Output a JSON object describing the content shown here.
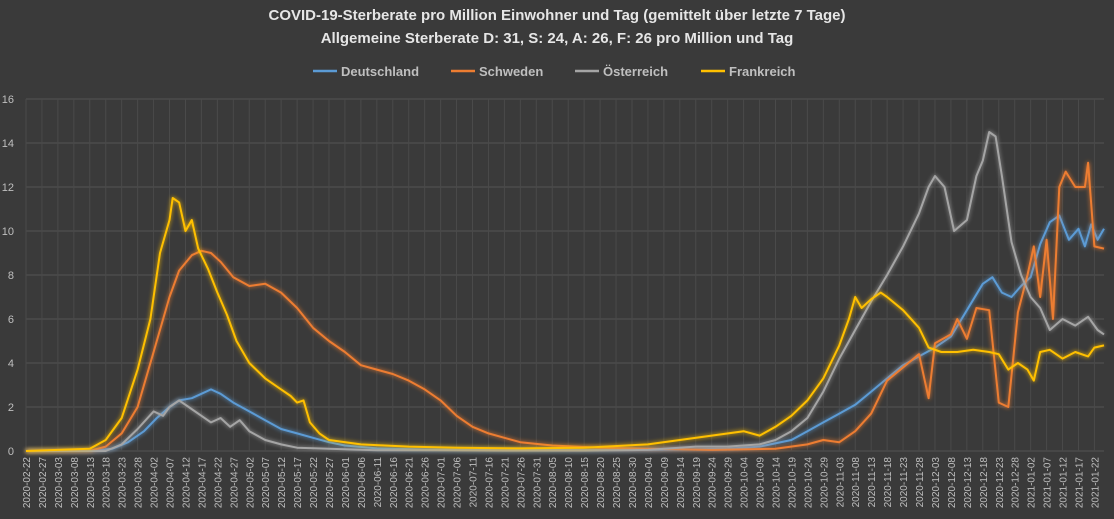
{
  "chart_data": {
    "type": "line",
    "title": "COVID-19-Sterberate pro Million Einwohner und Tag (gemittelt über letzte 7 Tage)",
    "subtitle": "Allgemeine Sterberate D: 31, S: 24, A: 26, F: 26 pro Million und Tag",
    "xlabel": "",
    "ylabel": "",
    "ylim": [
      0,
      16
    ],
    "yticks": [
      "0",
      "2",
      "4",
      "6",
      "8",
      "10",
      "12",
      "14",
      "16"
    ],
    "grid": true,
    "legend_position": "top",
    "x_start": "2020-02-22",
    "x_end": "2021-01-25",
    "x_tick_labels": [
      "2020-02-22",
      "2020-02-27",
      "2020-03-03",
      "2020-03-08",
      "2020-03-13",
      "2020-03-18",
      "2020-03-23",
      "2020-03-28",
      "2020-04-02",
      "2020-04-07",
      "2020-04-12",
      "2020-04-17",
      "2020-04-22",
      "2020-04-27",
      "2020-05-02",
      "2020-05-07",
      "2020-05-12",
      "2020-05-17",
      "2020-05-22",
      "2020-05-27",
      "2020-06-01",
      "2020-06-06",
      "2020-06-11",
      "2020-06-16",
      "2020-06-21",
      "2020-06-26",
      "2020-07-01",
      "2020-07-06",
      "2020-07-11",
      "2020-07-16",
      "2020-07-21",
      "2020-07-26",
      "2020-07-31",
      "2020-08-05",
      "2020-08-10",
      "2020-08-15",
      "2020-08-20",
      "2020-08-25",
      "2020-08-30",
      "2020-09-04",
      "2020-09-09",
      "2020-09-14",
      "2020-09-19",
      "2020-09-24",
      "2020-09-29",
      "2020-10-04",
      "2020-10-09",
      "2020-10-14",
      "2020-10-19",
      "2020-10-24",
      "2020-10-29",
      "2020-11-03",
      "2020-11-08",
      "2020-11-13",
      "2020-11-18",
      "2020-11-23",
      "2020-11-28",
      "2020-12-03",
      "2020-12-08",
      "2020-12-13",
      "2020-12-18",
      "2020-12-23",
      "2020-12-28",
      "2021-01-02",
      "2021-01-07",
      "2021-01-12",
      "2021-01-17",
      "2021-01-22"
    ],
    "series": [
      {
        "name": "Deutschland",
        "color": "#5b9bd5",
        "points": [
          [
            "2020-02-22",
            0
          ],
          [
            "2020-03-13",
            0
          ],
          [
            "2020-03-20",
            0.1
          ],
          [
            "2020-03-25",
            0.4
          ],
          [
            "2020-03-30",
            0.9
          ],
          [
            "2020-04-03",
            1.5
          ],
          [
            "2020-04-07",
            2.0
          ],
          [
            "2020-04-10",
            2.3
          ],
          [
            "2020-04-14",
            2.4
          ],
          [
            "2020-04-17",
            2.6
          ],
          [
            "2020-04-20",
            2.8
          ],
          [
            "2020-04-23",
            2.6
          ],
          [
            "2020-04-27",
            2.2
          ],
          [
            "2020-05-02",
            1.8
          ],
          [
            "2020-05-07",
            1.4
          ],
          [
            "2020-05-12",
            1.0
          ],
          [
            "2020-05-17",
            0.8
          ],
          [
            "2020-05-22",
            0.6
          ],
          [
            "2020-05-27",
            0.4
          ],
          [
            "2020-06-01",
            0.25
          ],
          [
            "2020-06-11",
            0.12
          ],
          [
            "2020-06-26",
            0.07
          ],
          [
            "2020-07-21",
            0.04
          ],
          [
            "2020-08-25",
            0.05
          ],
          [
            "2020-09-14",
            0.07
          ],
          [
            "2020-09-29",
            0.1
          ],
          [
            "2020-10-09",
            0.2
          ],
          [
            "2020-10-19",
            0.5
          ],
          [
            "2020-10-24",
            0.9
          ],
          [
            "2020-10-29",
            1.3
          ],
          [
            "2020-11-03",
            1.7
          ],
          [
            "2020-11-08",
            2.1
          ],
          [
            "2020-11-13",
            2.7
          ],
          [
            "2020-11-18",
            3.3
          ],
          [
            "2020-11-23",
            3.9
          ],
          [
            "2020-11-28",
            4.3
          ],
          [
            "2020-12-03",
            4.7
          ],
          [
            "2020-12-08",
            5.2
          ],
          [
            "2020-12-13",
            6.4
          ],
          [
            "2020-12-18",
            7.6
          ],
          [
            "2020-12-21",
            7.9
          ],
          [
            "2020-12-24",
            7.2
          ],
          [
            "2020-12-27",
            7.0
          ],
          [
            "2020-12-30",
            7.5
          ],
          [
            "2021-01-02",
            7.9
          ],
          [
            "2021-01-05",
            9.4
          ],
          [
            "2021-01-08",
            10.4
          ],
          [
            "2021-01-11",
            10.7
          ],
          [
            "2021-01-14",
            9.6
          ],
          [
            "2021-01-17",
            10.1
          ],
          [
            "2021-01-19",
            9.3
          ],
          [
            "2021-01-21",
            10.3
          ],
          [
            "2021-01-23",
            9.6
          ],
          [
            "2021-01-25",
            10.1
          ]
        ]
      },
      {
        "name": "Schweden",
        "color": "#ed7d31",
        "points": [
          [
            "2020-02-22",
            0
          ],
          [
            "2020-03-13",
            0
          ],
          [
            "2020-03-18",
            0.2
          ],
          [
            "2020-03-23",
            0.8
          ],
          [
            "2020-03-28",
            2.0
          ],
          [
            "2020-04-02",
            4.5
          ],
          [
            "2020-04-07",
            7.0
          ],
          [
            "2020-04-10",
            8.2
          ],
          [
            "2020-04-14",
            8.9
          ],
          [
            "2020-04-17",
            9.1
          ],
          [
            "2020-04-20",
            9.0
          ],
          [
            "2020-04-23",
            8.6
          ],
          [
            "2020-04-27",
            7.9
          ],
          [
            "2020-05-02",
            7.5
          ],
          [
            "2020-05-07",
            7.6
          ],
          [
            "2020-05-12",
            7.2
          ],
          [
            "2020-05-17",
            6.5
          ],
          [
            "2020-05-22",
            5.6
          ],
          [
            "2020-05-27",
            5.0
          ],
          [
            "2020-06-01",
            4.5
          ],
          [
            "2020-06-06",
            3.9
          ],
          [
            "2020-06-11",
            3.7
          ],
          [
            "2020-06-16",
            3.5
          ],
          [
            "2020-06-21",
            3.2
          ],
          [
            "2020-06-26",
            2.8
          ],
          [
            "2020-07-01",
            2.3
          ],
          [
            "2020-07-06",
            1.6
          ],
          [
            "2020-07-11",
            1.1
          ],
          [
            "2020-07-16",
            0.8
          ],
          [
            "2020-07-21",
            0.6
          ],
          [
            "2020-07-26",
            0.4
          ],
          [
            "2020-08-05",
            0.25
          ],
          [
            "2020-08-20",
            0.15
          ],
          [
            "2020-09-04",
            0.1
          ],
          [
            "2020-09-24",
            0.05
          ],
          [
            "2020-10-14",
            0.1
          ],
          [
            "2020-10-24",
            0.3
          ],
          [
            "2020-10-29",
            0.5
          ],
          [
            "2020-11-03",
            0.4
          ],
          [
            "2020-11-08",
            0.9
          ],
          [
            "2020-11-13",
            1.7
          ],
          [
            "2020-11-18",
            3.2
          ],
          [
            "2020-11-23",
            3.8
          ],
          [
            "2020-11-28",
            4.4
          ],
          [
            "2020-12-01",
            2.4
          ],
          [
            "2020-12-03",
            4.9
          ],
          [
            "2020-12-08",
            5.3
          ],
          [
            "2020-12-10",
            6.0
          ],
          [
            "2020-12-13",
            5.1
          ],
          [
            "2020-12-16",
            6.5
          ],
          [
            "2020-12-20",
            6.4
          ],
          [
            "2020-12-23",
            2.2
          ],
          [
            "2020-12-26",
            2.0
          ],
          [
            "2020-12-29",
            6.3
          ],
          [
            "2021-01-01",
            8.0
          ],
          [
            "2021-01-03",
            9.3
          ],
          [
            "2021-01-05",
            7.0
          ],
          [
            "2021-01-07",
            9.6
          ],
          [
            "2021-01-09",
            6.0
          ],
          [
            "2021-01-11",
            12.0
          ],
          [
            "2021-01-13",
            12.7
          ],
          [
            "2021-01-16",
            12.0
          ],
          [
            "2021-01-19",
            12.0
          ],
          [
            "2021-01-20",
            13.1
          ],
          [
            "2021-01-22",
            9.3
          ],
          [
            "2021-01-25",
            9.2
          ]
        ]
      },
      {
        "name": "Österreich",
        "color": "#a5a5a5",
        "points": [
          [
            "2020-02-22",
            0
          ],
          [
            "2020-03-18",
            0
          ],
          [
            "2020-03-23",
            0.3
          ],
          [
            "2020-03-28",
            1.0
          ],
          [
            "2020-04-02",
            1.8
          ],
          [
            "2020-04-05",
            1.6
          ],
          [
            "2020-04-07",
            2.0
          ],
          [
            "2020-04-10",
            2.3
          ],
          [
            "2020-04-13",
            2.0
          ],
          [
            "2020-04-17",
            1.6
          ],
          [
            "2020-04-20",
            1.3
          ],
          [
            "2020-04-23",
            1.5
          ],
          [
            "2020-04-26",
            1.1
          ],
          [
            "2020-04-29",
            1.4
          ],
          [
            "2020-05-02",
            0.9
          ],
          [
            "2020-05-07",
            0.5
          ],
          [
            "2020-05-12",
            0.3
          ],
          [
            "2020-05-17",
            0.15
          ],
          [
            "2020-05-27",
            0.1
          ],
          [
            "2020-06-11",
            0.03
          ],
          [
            "2020-07-01",
            0.03
          ],
          [
            "2020-07-21",
            0.02
          ],
          [
            "2020-08-15",
            0.02
          ],
          [
            "2020-09-04",
            0.05
          ],
          [
            "2020-09-19",
            0.2
          ],
          [
            "2020-09-29",
            0.2
          ],
          [
            "2020-10-09",
            0.3
          ],
          [
            "2020-10-14",
            0.5
          ],
          [
            "2020-10-19",
            0.9
          ],
          [
            "2020-10-24",
            1.5
          ],
          [
            "2020-10-29",
            2.7
          ],
          [
            "2020-11-03",
            4.2
          ],
          [
            "2020-11-08",
            5.5
          ],
          [
            "2020-11-13",
            6.8
          ],
          [
            "2020-11-18",
            8.0
          ],
          [
            "2020-11-23",
            9.3
          ],
          [
            "2020-11-28",
            10.8
          ],
          [
            "2020-12-01",
            12.0
          ],
          [
            "2020-12-03",
            12.5
          ],
          [
            "2020-12-06",
            12.0
          ],
          [
            "2020-12-09",
            10.0
          ],
          [
            "2020-12-13",
            10.5
          ],
          [
            "2020-12-16",
            12.5
          ],
          [
            "2020-12-18",
            13.2
          ],
          [
            "2020-12-20",
            14.5
          ],
          [
            "2020-12-22",
            14.3
          ],
          [
            "2020-12-24",
            12.5
          ],
          [
            "2020-12-27",
            9.5
          ],
          [
            "2020-12-30",
            8.0
          ],
          [
            "2021-01-02",
            7.0
          ],
          [
            "2021-01-05",
            6.5
          ],
          [
            "2021-01-08",
            5.5
          ],
          [
            "2021-01-12",
            6.0
          ],
          [
            "2021-01-16",
            5.7
          ],
          [
            "2021-01-20",
            6.1
          ],
          [
            "2021-01-23",
            5.5
          ],
          [
            "2021-01-25",
            5.3
          ]
        ]
      },
      {
        "name": "Frankreich",
        "color": "#ffc000",
        "points": [
          [
            "2020-02-22",
            0
          ],
          [
            "2020-03-13",
            0.1
          ],
          [
            "2020-03-18",
            0.5
          ],
          [
            "2020-03-23",
            1.5
          ],
          [
            "2020-03-28",
            3.7
          ],
          [
            "2020-04-01",
            6.0
          ],
          [
            "2020-04-04",
            9.0
          ],
          [
            "2020-04-07",
            10.5
          ],
          [
            "2020-04-08",
            11.5
          ],
          [
            "2020-04-10",
            11.3
          ],
          [
            "2020-04-12",
            10.0
          ],
          [
            "2020-04-14",
            10.5
          ],
          [
            "2020-04-16",
            9.2
          ],
          [
            "2020-04-19",
            8.3
          ],
          [
            "2020-04-22",
            7.2
          ],
          [
            "2020-04-25",
            6.2
          ],
          [
            "2020-04-28",
            5.0
          ],
          [
            "2020-05-02",
            4.0
          ],
          [
            "2020-05-07",
            3.3
          ],
          [
            "2020-05-12",
            2.8
          ],
          [
            "2020-05-15",
            2.5
          ],
          [
            "2020-05-17",
            2.2
          ],
          [
            "2020-05-19",
            2.3
          ],
          [
            "2020-05-21",
            1.3
          ],
          [
            "2020-05-24",
            0.8
          ],
          [
            "2020-05-27",
            0.5
          ],
          [
            "2020-06-06",
            0.3
          ],
          [
            "2020-06-21",
            0.2
          ],
          [
            "2020-07-06",
            0.15
          ],
          [
            "2020-07-26",
            0.12
          ],
          [
            "2020-08-15",
            0.15
          ],
          [
            "2020-09-04",
            0.3
          ],
          [
            "2020-09-14",
            0.5
          ],
          [
            "2020-09-24",
            0.7
          ],
          [
            "2020-10-04",
            0.9
          ],
          [
            "2020-10-09",
            0.7
          ],
          [
            "2020-10-14",
            1.1
          ],
          [
            "2020-10-19",
            1.6
          ],
          [
            "2020-10-24",
            2.3
          ],
          [
            "2020-10-29",
            3.3
          ],
          [
            "2020-11-03",
            4.8
          ],
          [
            "2020-11-06",
            6.0
          ],
          [
            "2020-11-08",
            7.0
          ],
          [
            "2020-11-10",
            6.5
          ],
          [
            "2020-11-13",
            6.9
          ],
          [
            "2020-11-16",
            7.2
          ],
          [
            "2020-11-18",
            7.0
          ],
          [
            "2020-11-23",
            6.4
          ],
          [
            "2020-11-28",
            5.6
          ],
          [
            "2020-12-01",
            4.7
          ],
          [
            "2020-12-05",
            4.5
          ],
          [
            "2020-12-10",
            4.5
          ],
          [
            "2020-12-15",
            4.6
          ],
          [
            "2020-12-20",
            4.5
          ],
          [
            "2020-12-23",
            4.4
          ],
          [
            "2020-12-26",
            3.7
          ],
          [
            "2020-12-29",
            4.0
          ],
          [
            "2021-01-01",
            3.7
          ],
          [
            "2021-01-03",
            3.2
          ],
          [
            "2021-01-05",
            4.5
          ],
          [
            "2021-01-08",
            4.6
          ],
          [
            "2021-01-12",
            4.2
          ],
          [
            "2021-01-16",
            4.5
          ],
          [
            "2021-01-20",
            4.3
          ],
          [
            "2021-01-22",
            4.7
          ],
          [
            "2021-01-25",
            4.8
          ]
        ]
      }
    ]
  }
}
